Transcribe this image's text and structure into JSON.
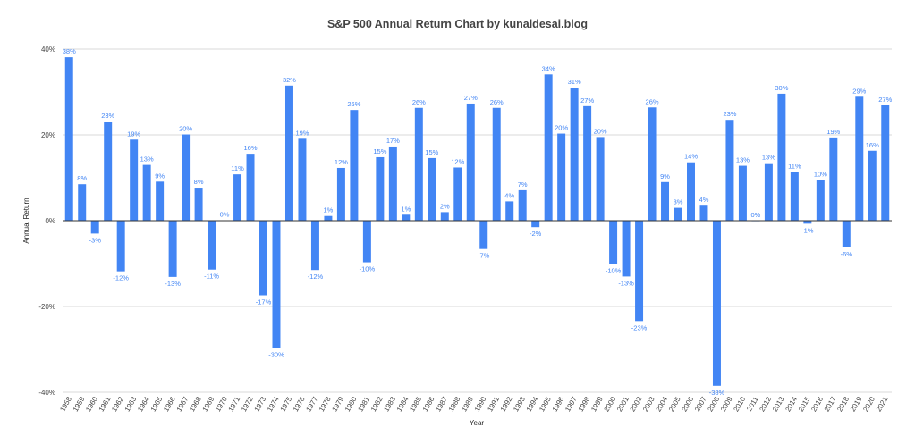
{
  "chart_data": {
    "type": "bar",
    "title": "S&P 500 Annual Return Chart by kunaldesai.blog",
    "xlabel": "Year",
    "ylabel": "Annual Return",
    "ylim": [
      -40,
      40
    ],
    "yticks": [
      40,
      20,
      0,
      -20,
      -40
    ],
    "ytick_labels": [
      "40%",
      "20%",
      "0%",
      "-20%",
      "-40%"
    ],
    "bar_color": "#4285f4",
    "grid": true,
    "categories": [
      "1958",
      "1959",
      "1960",
      "1961",
      "1962",
      "1963",
      "1964",
      "1965",
      "1966",
      "1967",
      "1968",
      "1969",
      "1970",
      "1971",
      "1972",
      "1973",
      "1974",
      "1975",
      "1976",
      "1977",
      "1978",
      "1979",
      "1980",
      "1981",
      "1982",
      "1983",
      "1984",
      "1985",
      "1986",
      "1987",
      "1988",
      "1989",
      "1990",
      "1991",
      "1992",
      "1993",
      "1994",
      "1995",
      "1996",
      "1997",
      "1998",
      "1999",
      "2000",
      "2001",
      "2002",
      "2003",
      "2004",
      "2005",
      "2006",
      "2007",
      "2008",
      "2009",
      "2010",
      "2011",
      "2012",
      "2013",
      "2014",
      "2015",
      "2016",
      "2017",
      "2018",
      "2019",
      "2020",
      "2021"
    ],
    "values": [
      38.1,
      8.5,
      -3.0,
      23.1,
      -11.8,
      18.9,
      13.0,
      9.1,
      -13.1,
      20.1,
      7.7,
      -11.4,
      0.1,
      10.8,
      15.6,
      -17.4,
      -29.7,
      31.5,
      19.1,
      -11.5,
      1.1,
      12.3,
      25.8,
      -9.7,
      14.8,
      17.3,
      1.4,
      26.3,
      14.6,
      2.0,
      12.4,
      27.3,
      -6.6,
      26.3,
      4.5,
      7.1,
      -1.5,
      34.1,
      20.3,
      31.0,
      26.7,
      19.5,
      -10.1,
      -13.0,
      -23.4,
      26.4,
      9.0,
      3.0,
      13.6,
      3.5,
      -38.5,
      23.5,
      12.8,
      0.0,
      13.4,
      29.6,
      11.4,
      -0.7,
      9.5,
      19.4,
      -6.2,
      28.9,
      16.3,
      26.9
    ],
    "data_labels": [
      "38%",
      "8%",
      "-3%",
      "23%",
      "-12%",
      "19%",
      "13%",
      "9%",
      "-13%",
      "20%",
      "8%",
      "-11%",
      "0%",
      "11%",
      "16%",
      "-17%",
      "-30%",
      "32%",
      "19%",
      "-12%",
      "1%",
      "12%",
      "26%",
      "-10%",
      "15%",
      "17%",
      "1%",
      "26%",
      "15%",
      "2%",
      "12%",
      "27%",
      "-7%",
      "26%",
      "4%",
      "7%",
      "-2%",
      "34%",
      "20%",
      "31%",
      "27%",
      "20%",
      "-10%",
      "-13%",
      "-23%",
      "26%",
      "9%",
      "3%",
      "14%",
      "4%",
      "-38%",
      "23%",
      "13%",
      "0%",
      "13%",
      "30%",
      "11%",
      "-1%",
      "10%",
      "19%",
      "-6%",
      "29%",
      "16%",
      "27%"
    ]
  }
}
